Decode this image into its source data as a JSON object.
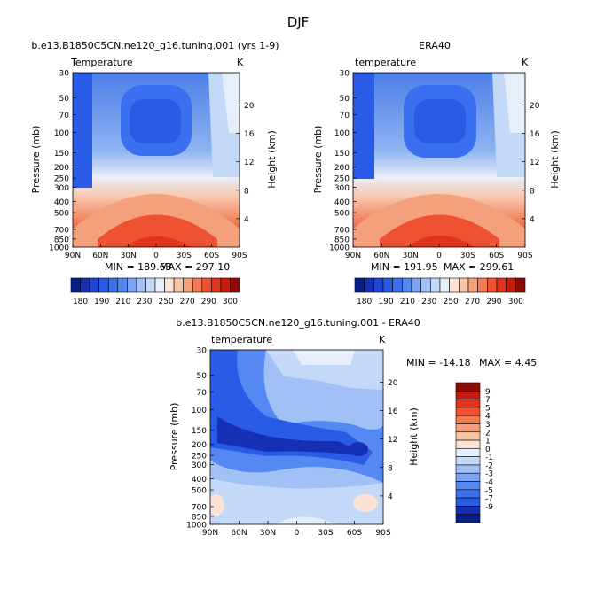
{
  "figure": {
    "season": "DJF"
  },
  "scales": {
    "pressure_ticks": [
      "30",
      "50",
      "70",
      "100",
      "150",
      "200",
      "250",
      "300",
      "400",
      "500",
      "700",
      "850",
      "1000"
    ],
    "height_ticks": [
      "20",
      "16",
      "12",
      "8",
      "4"
    ],
    "height_unit_corner": "K",
    "lat_ticks": [
      "90N",
      "60N",
      "30N",
      "0",
      "30S",
      "60S",
      "90S"
    ]
  },
  "chart_data": [
    {
      "type": "heatmap",
      "panel": "model",
      "title": "b.e13.B1850C5CN.ne120_g16.tuning.001 (yrs 1-9)",
      "subtitle": "Temperature",
      "corner": "K",
      "xlabel": "",
      "ylabel": "Pressure (mb)",
      "y2label": "Height (km)",
      "x": [
        "90N",
        "60N",
        "30N",
        "0",
        "30S",
        "60S",
        "90S"
      ],
      "y": [
        30,
        50,
        70,
        100,
        150,
        200,
        250,
        300,
        400,
        500,
        700,
        850,
        1000
      ],
      "min_label": "MIN = 189.63",
      "max_label": "MAX = 297.10",
      "colorbar_levels": [
        180,
        185,
        190,
        195,
        200,
        205,
        210,
        215,
        220,
        225,
        230,
        235,
        240,
        245,
        250,
        255,
        260,
        265,
        270,
        275,
        280,
        285,
        290,
        295,
        300
      ],
      "colorbar_labels": [
        "180",
        "190",
        "210",
        "230",
        "250",
        "270",
        "290",
        "300"
      ]
    },
    {
      "type": "heatmap",
      "panel": "obs",
      "title": "ERA40",
      "subtitle": "temperature",
      "corner": "K",
      "xlabel": "",
      "ylabel": "Pressure (mb)",
      "y2label": "Height (km)",
      "x": [
        "90N",
        "60N",
        "30N",
        "0",
        "30S",
        "60S",
        "90S"
      ],
      "y": [
        30,
        50,
        70,
        100,
        150,
        200,
        250,
        300,
        400,
        500,
        700,
        850,
        1000
      ],
      "min_label": "MIN = 191.95",
      "max_label": "MAX = 299.61",
      "colorbar_labels": [
        "180",
        "190",
        "210",
        "230",
        "250",
        "270",
        "290",
        "300"
      ]
    },
    {
      "type": "heatmap",
      "panel": "difference",
      "title": "b.e13.B1850C5CN.ne120_g16.tuning.001 - ERA40",
      "subtitle": "temperature",
      "corner": "K",
      "xlabel": "",
      "ylabel": "Pressure (mb)",
      "y2label": "Height (km)",
      "x": [
        "90N",
        "60N",
        "30N",
        "0",
        "30S",
        "60S",
        "90S"
      ],
      "y": [
        30,
        50,
        70,
        100,
        150,
        200,
        250,
        300,
        400,
        500,
        700,
        850,
        1000
      ],
      "min_label": "MIN = -14.18",
      "max_label": "MAX =   4.45",
      "colorbar_labels": [
        "9",
        "7",
        "5",
        "4",
        "3",
        "2",
        "1",
        "0",
        "-1",
        "-2",
        "-3",
        "-4",
        "-5",
        "-7",
        "-9"
      ]
    }
  ],
  "colors": {
    "model_bar": [
      "#0a1e8a",
      "#1630b4",
      "#1e46d2",
      "#2a5be6",
      "#3a70f0",
      "#5688f2",
      "#7aa4f4",
      "#a0c0f6",
      "#c4d8f8",
      "#e6eefa",
      "#fbe2d4",
      "#f8c4a8",
      "#f5a07c",
      "#f27a54",
      "#ee5232",
      "#e0341c",
      "#c21e10",
      "#8e0c06"
    ],
    "diff_bar": [
      "#8e0c06",
      "#c21e10",
      "#e0341c",
      "#ee5232",
      "#f27a54",
      "#f5a07c",
      "#f8c4a8",
      "#fbe2d4",
      "#e6eefa",
      "#c4d8f8",
      "#a0c0f6",
      "#7aa4f4",
      "#5688f2",
      "#3a70f0",
      "#2a5be6",
      "#1630b4",
      "#0a1e8a"
    ]
  }
}
